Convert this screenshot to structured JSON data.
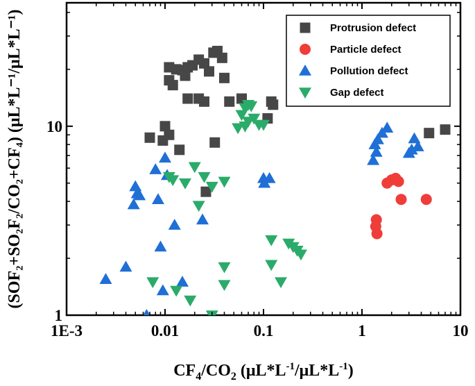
{
  "chart_data": {
    "type": "scatter",
    "x_scale": "log",
    "y_scale": "log",
    "xlim": [
      0.001,
      10
    ],
    "ylim": [
      1,
      45
    ],
    "x_ticks": [
      {
        "value": 0.001,
        "label": "1E-3"
      },
      {
        "value": 0.01,
        "label": "0.01"
      },
      {
        "value": 0.1,
        "label": "0.1"
      },
      {
        "value": 1,
        "label": "1"
      },
      {
        "value": 10,
        "label": "10"
      }
    ],
    "y_ticks": [
      {
        "value": 1,
        "label": "1"
      },
      {
        "value": 10,
        "label": "10"
      }
    ],
    "xlabel": {
      "base": "CF",
      "sub1": "4",
      "mid": "/CO",
      "sub2": "2",
      "unit": " (μL*L",
      "sup1": "-1",
      "unit2": "/μL*L",
      "sup2": "-1",
      "end": ")"
    },
    "ylabel": {
      "text": "(SOF₂+SO₂F₂/CO₂+CF₄) (μL*L⁻¹/μL*L⁻¹)"
    },
    "legend_position": "top-right",
    "series": [
      {
        "name": "Protrusion defect",
        "marker": "square",
        "color": "#474747",
        "points": [
          [
            0.011,
            20.5
          ],
          [
            0.013,
            20
          ],
          [
            0.015,
            19.8
          ],
          [
            0.017,
            20.5
          ],
          [
            0.019,
            21
          ],
          [
            0.022,
            22.5
          ],
          [
            0.025,
            21.5
          ],
          [
            0.028,
            19.5
          ],
          [
            0.031,
            24.5
          ],
          [
            0.034,
            25
          ],
          [
            0.038,
            23
          ],
          [
            0.016,
            18.5
          ],
          [
            0.011,
            17.5
          ],
          [
            0.012,
            16.5
          ],
          [
            0.04,
            18
          ],
          [
            0.017,
            14
          ],
          [
            0.022,
            14
          ],
          [
            0.025,
            13.5
          ],
          [
            0.045,
            13.5
          ],
          [
            0.06,
            14
          ],
          [
            0.11,
            11
          ],
          [
            0.12,
            13.5
          ],
          [
            0.125,
            13
          ],
          [
            0.01,
            10
          ],
          [
            0.011,
            9
          ],
          [
            0.007,
            8.7
          ],
          [
            0.0095,
            8.4
          ],
          [
            0.014,
            7.5
          ],
          [
            0.032,
            8.2
          ],
          [
            0.026,
            4.5
          ],
          [
            4.8,
            9.2
          ],
          [
            7,
            9.6
          ]
        ]
      },
      {
        "name": "Particle defect",
        "marker": "circle",
        "color": "#ef3d3a",
        "points": [
          [
            1.8,
            5
          ],
          [
            2.0,
            5.2
          ],
          [
            2.2,
            5.3
          ],
          [
            2.35,
            5.1
          ],
          [
            2.5,
            4.1
          ],
          [
            4.5,
            4.1
          ],
          [
            1.4,
            3.2
          ],
          [
            1.38,
            2.95
          ],
          [
            1.42,
            2.7
          ]
        ]
      },
      {
        "name": "Pollution defect",
        "marker": "triangle-up",
        "color": "#1f6fd6",
        "points": [
          [
            0.005,
            4.8
          ],
          [
            0.0052,
            4.4
          ],
          [
            0.0048,
            3.85
          ],
          [
            0.0055,
            4.3
          ],
          [
            0.008,
            5.9
          ],
          [
            0.0085,
            4.1
          ],
          [
            0.01,
            6.8
          ],
          [
            0.0105,
            5.5
          ],
          [
            0.0125,
            3.0
          ],
          [
            0.009,
            2.3
          ],
          [
            0.024,
            3.2
          ],
          [
            0.004,
            1.8
          ],
          [
            0.0025,
            1.55
          ],
          [
            0.0095,
            1.35
          ],
          [
            0.015,
            1.5
          ],
          [
            0.0065,
            1.0
          ],
          [
            0.1,
            5.3
          ],
          [
            0.115,
            5.3
          ],
          [
            0.102,
            5.0
          ],
          [
            1.3,
            6.6
          ],
          [
            1.35,
            8.0
          ],
          [
            1.45,
            8.5
          ],
          [
            1.6,
            9.2
          ],
          [
            1.8,
            9.8
          ],
          [
            1.4,
            7.3
          ],
          [
            3.0,
            7.2
          ],
          [
            3.2,
            7.5
          ],
          [
            3.4,
            8.6
          ],
          [
            3.7,
            7.8
          ]
        ]
      },
      {
        "name": "Gap defect",
        "marker": "triangle-down",
        "color": "#2bab6a",
        "points": [
          [
            0.065,
            12.5
          ],
          [
            0.07,
            13
          ],
          [
            0.075,
            12.8
          ],
          [
            0.06,
            11.5
          ],
          [
            0.08,
            11
          ],
          [
            0.07,
            10.6
          ],
          [
            0.09,
            10.2
          ],
          [
            0.1,
            10.2
          ],
          [
            0.065,
            10
          ],
          [
            0.055,
            9.8
          ],
          [
            0.011,
            5.4
          ],
          [
            0.012,
            5.2
          ],
          [
            0.016,
            5.0
          ],
          [
            0.02,
            6.1
          ],
          [
            0.025,
            5.4
          ],
          [
            0.03,
            4.8
          ],
          [
            0.04,
            5.1
          ],
          [
            0.022,
            3.8
          ],
          [
            0.12,
            2.5
          ],
          [
            0.18,
            2.4
          ],
          [
            0.2,
            2.3
          ],
          [
            0.22,
            2.2
          ],
          [
            0.24,
            2.1
          ],
          [
            0.12,
            1.85
          ],
          [
            0.04,
            1.8
          ],
          [
            0.15,
            1.5
          ],
          [
            0.0075,
            1.5
          ],
          [
            0.04,
            1.45
          ],
          [
            0.013,
            1.35
          ],
          [
            0.018,
            1.2
          ],
          [
            0.03,
            1.0
          ]
        ]
      }
    ]
  }
}
